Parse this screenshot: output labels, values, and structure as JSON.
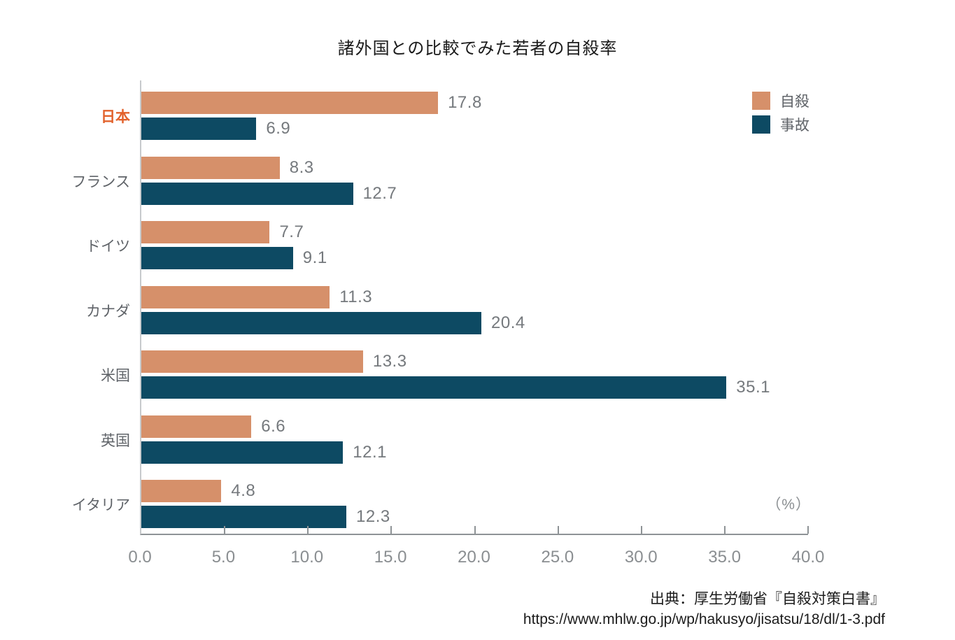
{
  "title": "諸外国との比較でみた若者の自殺率",
  "legend": {
    "items": [
      {
        "label": "自殺",
        "color": "#D6906A"
      },
      {
        "label": "事故",
        "color": "#0D4A63"
      }
    ]
  },
  "axis": {
    "unit_label": "（%）",
    "tick_labels": [
      "0.0",
      "5.0",
      "10.0",
      "15.0",
      "20.0",
      "25.0",
      "30.0",
      "35.0",
      "40.0"
    ],
    "min": 0,
    "max": 40
  },
  "source": {
    "line1": "出典：厚生労働省『自殺対策白書』",
    "line2": "https://www.mhlw.go.jp/wp/hakusyo/jisatsu/18/dl/1-3.pdf"
  },
  "chart_data": {
    "type": "bar",
    "orientation": "horizontal",
    "title": "諸外国との比較でみた若者の自殺率",
    "categories": [
      "日本",
      "フランス",
      "ドイツ",
      "カナダ",
      "米国",
      "英国",
      "イタリア"
    ],
    "series": [
      {
        "name": "自殺",
        "color": "#D6906A",
        "values": [
          17.8,
          8.3,
          7.7,
          11.3,
          13.3,
          6.6,
          4.8
        ]
      },
      {
        "name": "事故",
        "color": "#0D4A63",
        "values": [
          6.9,
          12.7,
          9.1,
          20.4,
          35.1,
          12.1,
          12.3
        ]
      }
    ],
    "xlabel": "（%）",
    "xlim": [
      0,
      40
    ],
    "x_ticks": [
      0,
      5,
      10,
      15,
      20,
      25,
      30,
      35,
      40
    ],
    "grid": false,
    "legend_position": "top-right",
    "highlight_category": "日本",
    "highlight_color": "#E2622C"
  },
  "colors": {
    "bar_suicide": "#D6906A",
    "bar_accident": "#0D4A63",
    "category_label": "#5F6368",
    "value_label": "#75797D",
    "tick_label": "#8A8E91",
    "axis_line": "#8E9396",
    "y_axis_line": "#C7CACC",
    "title_text": "#1A1A1A",
    "source_text": "#1C1C1C",
    "japan_highlight": "#E2622C"
  }
}
